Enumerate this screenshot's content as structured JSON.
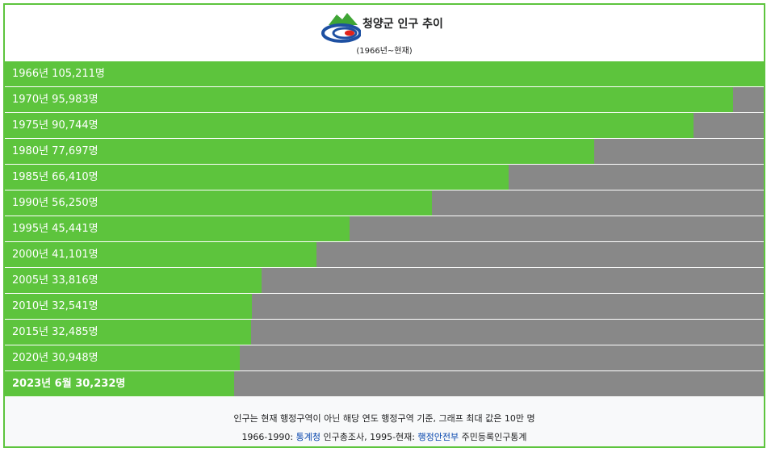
{
  "header": {
    "title": "청양군 인구 추이",
    "subtitle": "(1966년~현재)",
    "logo_icon": "cheongyang-county-logo"
  },
  "colors": {
    "bar": "#5dc43d",
    "track": "#888888",
    "border": "#5dc43d",
    "link": "#0645ad"
  },
  "chart_data": {
    "type": "bar",
    "orientation": "horizontal",
    "max_value": 100000,
    "categories": [
      "1966년",
      "1970년",
      "1975년",
      "1980년",
      "1985년",
      "1990년",
      "1995년",
      "2000년",
      "2005년",
      "2010년",
      "2015년",
      "2020년",
      "2023년 6월"
    ],
    "values": [
      105211,
      95983,
      90744,
      77697,
      66410,
      56250,
      45441,
      41101,
      33816,
      32541,
      32485,
      30948,
      30232
    ],
    "labels": [
      "1966년 105,211명",
      "1970년 95,983명",
      "1975년 90,744명",
      "1980년 77,697명",
      "1985년 66,410명",
      "1990년 56,250명",
      "1995년 45,441명",
      "2000년 41,101명",
      "2005년 33,816명",
      "2010년 32,541명",
      "2015년 32,485명",
      "2020년 30,948명",
      "2023년 6월 30,232명"
    ]
  },
  "footer": {
    "note": "인구는 현재 행정구역이 아닌 해당 연도 행정구역 기준, 그래프 최대 값은 10만 명",
    "source_prefix": "1966-1990: ",
    "source_link1": "통계청",
    "source_mid": " 인구총조사, 1995-현재: ",
    "source_link2": "행정안전부",
    "source_suffix": " 주민등록인구통계"
  }
}
